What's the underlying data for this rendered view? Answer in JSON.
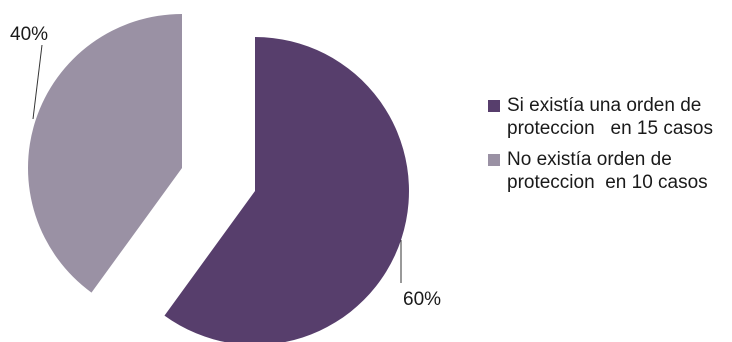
{
  "chart_data": {
    "type": "pie",
    "title": "",
    "slices": [
      {
        "label": "Si existía una orden de proteccion   en 15 casos",
        "value": 60,
        "display": "60%",
        "color": "#573e6c"
      },
      {
        "label": "No existía orden de proteccion  en 10 casos",
        "value": 40,
        "display": "40%",
        "color": "#9a91a4"
      }
    ],
    "legend_position": "right",
    "exploded": true
  }
}
